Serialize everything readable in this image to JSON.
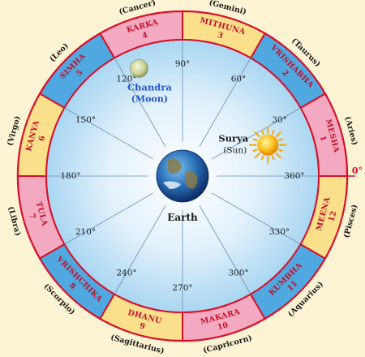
{
  "signs": [
    {
      "number": "1",
      "sanskrit": "MESHA",
      "english": "(Aries)",
      "fill": "#f3a9c0"
    },
    {
      "number": "2",
      "sanskrit": "VRISHABHA",
      "english": "(Taurus)",
      "fill": "#4fa8e0"
    },
    {
      "number": "3",
      "sanskrit": "MITHUNA",
      "english": "(Gemini)",
      "fill": "#fbe08c"
    },
    {
      "number": "4",
      "sanskrit": "KARKA",
      "english": "(Cancer)",
      "fill": "#f3a9c0"
    },
    {
      "number": "5",
      "sanskrit": "SIMHA",
      "english": "(Leo)",
      "fill": "#4fa8e0"
    },
    {
      "number": "6",
      "sanskrit": "KANYA",
      "english": "(Virgo)",
      "fill": "#fbe08c"
    },
    {
      "number": "7",
      "sanskrit": "TULA",
      "english": "(Libra)",
      "fill": "#f3a9c0"
    },
    {
      "number": "8",
      "sanskrit": "VRISHCHIKA",
      "english": "(Scorpio)",
      "fill": "#4fa8e0"
    },
    {
      "number": "9",
      "sanskrit": "DHANU",
      "english": "(Sagittarius)",
      "fill": "#fbe08c"
    },
    {
      "number": "10",
      "sanskrit": "MAKARA",
      "english": "(Capricorn)",
      "fill": "#f3a9c0"
    },
    {
      "number": "11",
      "sanskrit": "KUMBHA",
      "english": "(Aquarius)",
      "fill": "#4fa8e0"
    },
    {
      "number": "12",
      "sanskrit": "MEENA",
      "english": "(Pisces)",
      "fill": "#fbe08c"
    }
  ],
  "degree_labels": [
    "30°",
    "60°",
    "90°",
    "120°",
    "150°",
    "180°",
    "210°",
    "240°",
    "270°",
    "300°",
    "330°",
    "360°"
  ],
  "zero_label": "0°",
  "earth_label": "Earth",
  "sun": {
    "name": "Surya",
    "english": "(Sun)",
    "angle_deg": 20
  },
  "moon": {
    "name": "Chandra",
    "english": "(Moon)",
    "angle_deg": 112
  },
  "colors": {
    "ring_red": "#d8102a",
    "sign_text": "#c4102a",
    "label_blue": "#2557c8",
    "text_dark": "#1a1a1a",
    "background": "#fbf3d3"
  }
}
